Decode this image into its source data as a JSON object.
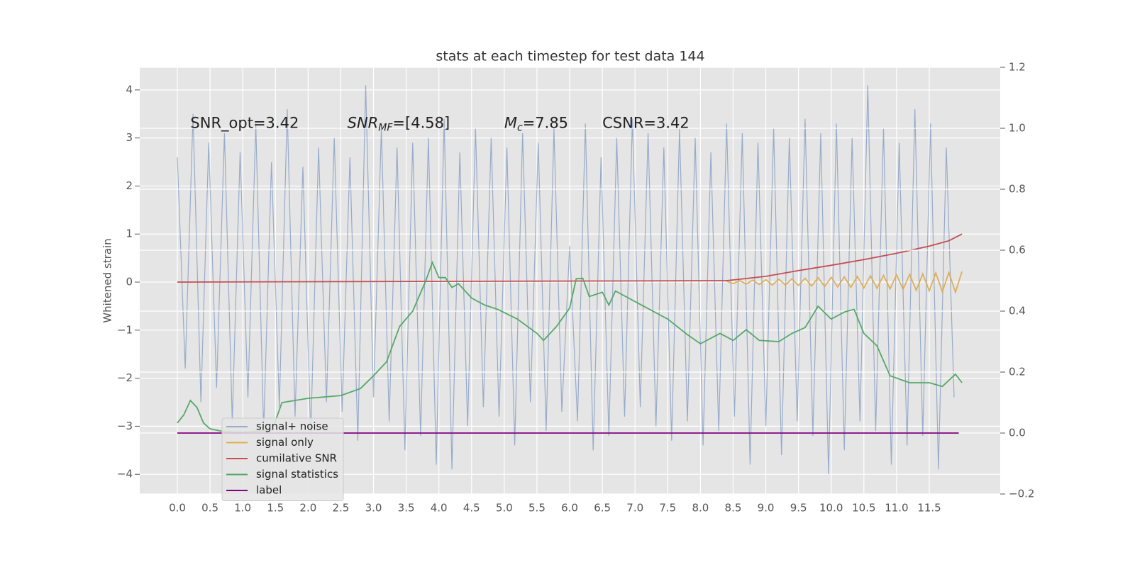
{
  "chart_data": {
    "type": "line",
    "title": "stats at each timestep for test data 144",
    "y_label": "Whitened strain",
    "grid": true,
    "background": "#e5e5e5",
    "legend_position": "lower left",
    "xlim": [
      -0.575,
      12.585
    ],
    "ylim": [
      -4.41,
      4.47
    ],
    "y2lim": [
      -0.2,
      1.2
    ],
    "xticks": [
      {
        "value": 0,
        "label": "0.0"
      },
      0.5,
      {
        "value": 1,
        "label": "1.0"
      },
      1.5,
      {
        "value": 2,
        "label": "2.0"
      },
      2.5,
      {
        "value": 3,
        "label": "3.0"
      },
      3.5,
      {
        "value": 4,
        "label": "4.0"
      },
      4.5,
      {
        "value": 5,
        "label": "5.0"
      },
      5.5,
      {
        "value": 6,
        "label": "6.0"
      },
      6.5,
      {
        "value": 7,
        "label": "7.0"
      },
      7.5,
      {
        "value": 8,
        "label": "8.0"
      },
      8.5,
      {
        "value": 9,
        "label": "9.0"
      },
      9.5,
      {
        "value": 10,
        "label": "10.0"
      },
      10.5,
      {
        "value": 11,
        "label": "11.0"
      },
      11.5
    ],
    "yticks": [
      {
        "value": -4,
        "label": "−4"
      },
      {
        "value": -3,
        "label": "−3"
      },
      {
        "value": -2,
        "label": "−2"
      },
      {
        "value": -1,
        "label": "−1"
      },
      0,
      1,
      2,
      3,
      4
    ],
    "y2ticks": [
      {
        "value": -0.2,
        "label": "−0.2"
      },
      {
        "value": 0,
        "label": "0.0"
      },
      0.2,
      0.4,
      0.6,
      0.8,
      {
        "value": 1,
        "label": "1.0"
      },
      1.2
    ],
    "annotations": [
      {
        "x": 0.2,
        "y": 3.3,
        "parts": [
          {
            "text": "SNR_opt=3.42",
            "style": "normal"
          }
        ]
      },
      {
        "x": 2.6,
        "y": 3.3,
        "parts": [
          {
            "text": "SNR",
            "style": "italic"
          },
          {
            "text": "MF",
            "style": "italic-sub"
          },
          {
            "text": "=[4.58]",
            "style": "normal"
          }
        ]
      },
      {
        "x": 5.0,
        "y": 3.3,
        "parts": [
          {
            "text": "M",
            "style": "italic"
          },
          {
            "text": "c",
            "style": "italic-sub"
          },
          {
            "text": "=7.85",
            "style": "normal"
          }
        ]
      },
      {
        "x": 6.5,
        "y": 3.3,
        "parts": [
          {
            "text": "CSNR=3.42",
            "style": "normal"
          }
        ]
      }
    ],
    "series": [
      {
        "name": "signal+ noise",
        "color": "#4c72b0",
        "alpha": 0.5,
        "axis": "y",
        "x": [
          0,
          0.12,
          0.24,
          0.36,
          0.48,
          0.6,
          0.72,
          0.84,
          0.96,
          1.08,
          1.2,
          1.32,
          1.44,
          1.56,
          1.68,
          1.8,
          1.92,
          2.04,
          2.16,
          2.28,
          2.4,
          2.52,
          2.64,
          2.76,
          2.88,
          3,
          3.12,
          3.24,
          3.36,
          3.48,
          3.6,
          3.72,
          3.84,
          3.96,
          4.08,
          4.2,
          4.32,
          4.44,
          4.56,
          4.68,
          4.8,
          4.92,
          5.04,
          5.16,
          5.28,
          5.4,
          5.52,
          5.64,
          5.76,
          5.88,
          6,
          6.12,
          6.24,
          6.36,
          6.48,
          6.6,
          6.72,
          6.84,
          6.96,
          7.08,
          7.2,
          7.32,
          7.44,
          7.56,
          7.68,
          7.8,
          7.92,
          8.04,
          8.16,
          8.28,
          8.4,
          8.52,
          8.64,
          8.76,
          8.88,
          9,
          9.12,
          9.24,
          9.36,
          9.48,
          9.6,
          9.72,
          9.84,
          9.96,
          10.08,
          10.2,
          10.32,
          10.44,
          10.56,
          10.68,
          10.8,
          10.92,
          11.04,
          11.16,
          11.28,
          11.4,
          11.52,
          11.64,
          11.76,
          11.88
        ],
        "values": [
          2.6,
          -1.8,
          3.5,
          -2.5,
          2.9,
          -2.2,
          3.1,
          -2.9,
          2.7,
          -2.4,
          3.3,
          -3.1,
          2.5,
          -2.6,
          3.6,
          -2.8,
          2.4,
          -3.2,
          2.8,
          -2.5,
          3.0,
          -2.7,
          2.6,
          -3.3,
          4.1,
          -2.4,
          3.2,
          -2.9,
          2.8,
          -3.5,
          2.9,
          -3.2,
          3.0,
          -3.8,
          3.4,
          -3.9,
          2.7,
          -3.0,
          3.2,
          -2.6,
          3.0,
          -2.8,
          2.8,
          -3.4,
          3.1,
          -2.5,
          2.9,
          -3.1,
          3.2,
          -2.7,
          0.75,
          -2.9,
          3.3,
          -3.5,
          2.6,
          -3.2,
          3.0,
          -2.8,
          3.4,
          -2.6,
          3.1,
          -3.0,
          2.8,
          -3.3,
          3.2,
          -2.9,
          3.0,
          -3.4,
          2.7,
          -3.1,
          3.3,
          -2.8,
          3.1,
          -3.8,
          2.9,
          -3.0,
          3.2,
          -3.6,
          3.0,
          -2.9,
          3.4,
          -3.2,
          3.1,
          -4.0,
          3.3,
          -3.5,
          3.0,
          -2.9,
          4.1,
          -3.1,
          3.2,
          -3.8,
          2.9,
          -3.4,
          3.6,
          -3.2,
          3.3,
          -3.9,
          2.8,
          -2.4
        ]
      },
      {
        "name": "signal only",
        "color": "#dda84a",
        "alpha": 0.9,
        "axis": "y",
        "x": [
          8.4,
          8.5,
          8.6,
          8.7,
          8.8,
          8.9,
          9,
          9.1,
          9.2,
          9.3,
          9.4,
          9.5,
          9.6,
          9.7,
          9.8,
          9.9,
          10,
          10.1,
          10.2,
          10.3,
          10.4,
          10.5,
          10.6,
          10.7,
          10.8,
          10.9,
          11,
          11.1,
          11.2,
          11.3,
          11.4,
          11.5,
          11.6,
          11.7,
          11.8,
          11.9,
          12
        ],
        "values": [
          0.02,
          -0.03,
          0.03,
          -0.04,
          0.04,
          -0.05,
          0.05,
          -0.06,
          0.06,
          -0.06,
          0.07,
          -0.07,
          0.08,
          -0.08,
          0.09,
          -0.09,
          0.1,
          -0.1,
          0.11,
          -0.11,
          0.12,
          -0.12,
          0.13,
          -0.13,
          0.14,
          -0.14,
          0.15,
          -0.15,
          0.16,
          -0.17,
          0.17,
          -0.18,
          0.19,
          -0.2,
          0.2,
          -0.21,
          0.22
        ]
      },
      {
        "name": "cumilative SNR",
        "color": "#c44e52",
        "alpha": 1,
        "axis": "y",
        "x": [
          0,
          8.4,
          9,
          9.5,
          10,
          10.5,
          11,
          11.5,
          11.8,
          12
        ],
        "values": [
          0,
          0.03,
          0.12,
          0.24,
          0.35,
          0.47,
          0.6,
          0.75,
          0.86,
          1.0
        ]
      },
      {
        "name": "signal statistics",
        "color": "#55a868",
        "alpha": 1,
        "axis": "y2",
        "x": [
          0,
          0.1,
          0.2,
          0.3,
          0.4,
          0.5,
          0.7,
          1.0,
          1.45,
          1.6,
          2.0,
          2.5,
          2.8,
          3.0,
          3.2,
          3.4,
          3.6,
          3.8,
          3.9,
          4.0,
          4.1,
          4.2,
          4.3,
          4.5,
          4.7,
          4.9,
          5.2,
          5.5,
          5.6,
          5.8,
          6.0,
          6.1,
          6.2,
          6.3,
          6.5,
          6.6,
          6.7,
          6.9,
          7.1,
          7.5,
          7.8,
          8.0,
          8.3,
          8.5,
          8.7,
          8.9,
          9.2,
          9.4,
          9.6,
          9.8,
          10.0,
          10.2,
          10.35,
          10.5,
          10.7,
          10.9,
          11.2,
          11.5,
          11.7,
          11.9,
          12.0
        ],
        "values": [
          0.033,
          0.06,
          0.107,
          0.084,
          0.033,
          0.014,
          0.005,
          0.002,
          0.01,
          0.1,
          0.114,
          0.123,
          0.146,
          0.188,
          0.234,
          0.35,
          0.4,
          0.5,
          0.56,
          0.51,
          0.51,
          0.478,
          0.49,
          0.443,
          0.42,
          0.406,
          0.374,
          0.327,
          0.304,
          0.35,
          0.41,
          0.506,
          0.508,
          0.448,
          0.462,
          0.42,
          0.466,
          0.443,
          0.42,
          0.374,
          0.323,
          0.293,
          0.327,
          0.304,
          0.339,
          0.304,
          0.3,
          0.327,
          0.346,
          0.416,
          0.374,
          0.397,
          0.406,
          0.327,
          0.286,
          0.188,
          0.165,
          0.165,
          0.153,
          0.193,
          0.165
        ]
      },
      {
        "name": "label",
        "color": "#800080",
        "alpha": 1,
        "axis": "y2",
        "x": [
          0,
          11.95
        ],
        "values": [
          0,
          0
        ]
      }
    ]
  }
}
